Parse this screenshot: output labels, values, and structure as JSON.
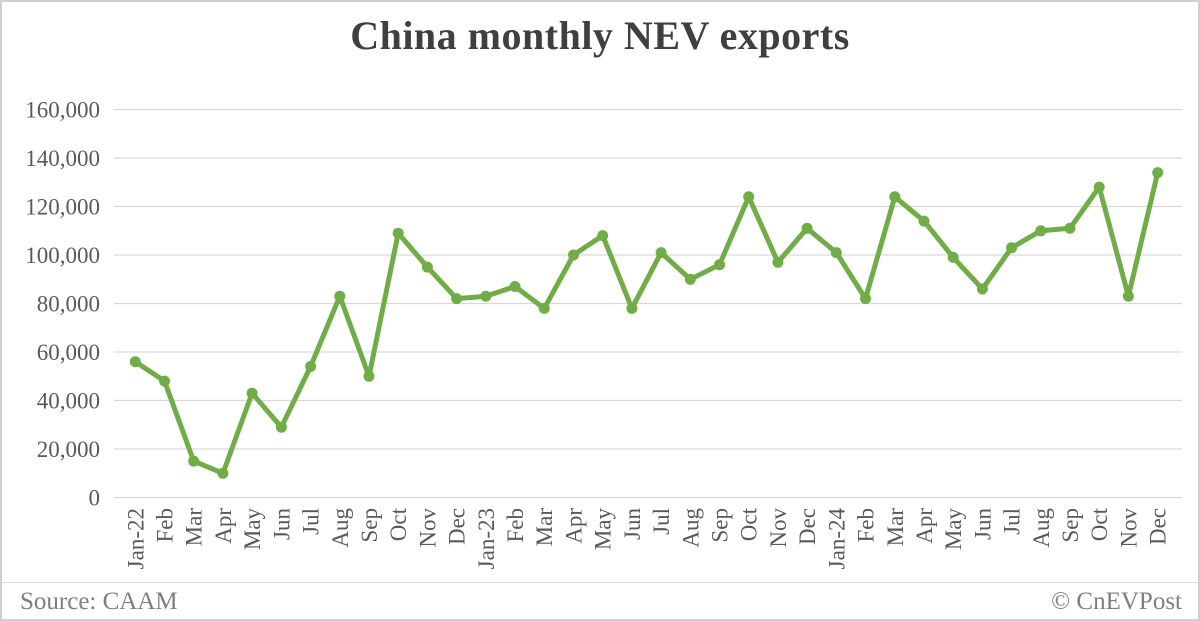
{
  "chart_data": {
    "type": "line",
    "title": "China monthly NEV exports",
    "series_name": "China monthly NEV exports",
    "categories": [
      "Jan-22",
      "Feb",
      "Mar",
      "Apr",
      "May",
      "Jun",
      "Jul",
      "Aug",
      "Sep",
      "Oct",
      "Nov",
      "Dec",
      "Jan-23",
      "Feb",
      "Mar",
      "Apr",
      "May",
      "Jun",
      "Jul",
      "Aug",
      "Sep",
      "Oct",
      "Nov",
      "Dec",
      "Jan-24",
      "Feb",
      "Mar",
      "Apr",
      "May",
      "Jun",
      "Jul",
      "Aug",
      "Sep",
      "Oct",
      "Nov",
      "Dec"
    ],
    "values": [
      56000,
      48000,
      15000,
      10000,
      43000,
      29000,
      54000,
      83000,
      50000,
      109000,
      95000,
      82000,
      83000,
      87000,
      78000,
      100000,
      108000,
      78000,
      101000,
      90000,
      96000,
      124000,
      97000,
      111000,
      101000,
      82000,
      124000,
      114000,
      99000,
      86000,
      103000,
      110000,
      111000,
      128000,
      83000,
      134000
    ],
    "ylim": [
      0,
      160000
    ],
    "ytick_step": 20000,
    "ytick_labels": [
      "0",
      "20,000",
      "40,000",
      "60,000",
      "80,000",
      "100,000",
      "120,000",
      "140,000",
      "160,000"
    ],
    "grid": "horizontal",
    "legend": "none",
    "xlabel": "",
    "ylabel": "",
    "line_color": "#70ad47",
    "marker": "circle"
  },
  "footer": {
    "source": "Source: CAAM",
    "copyright": "© CnEVPost"
  },
  "colors": {
    "line": "#70ad47",
    "grid": "#d9d9d9",
    "title_text": "#3f3f3f",
    "axis_text": "#595959",
    "footer_text": "#7f7f7f",
    "border": "#cfcfcf",
    "background": "#ffffff"
  }
}
